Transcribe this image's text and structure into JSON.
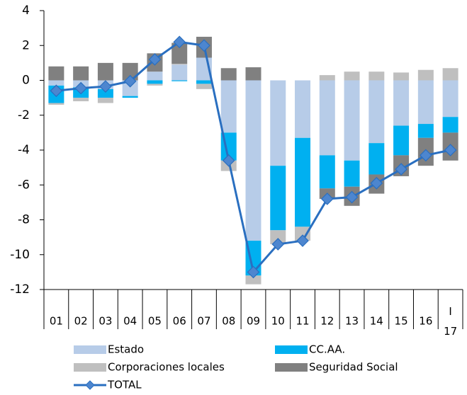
{
  "chart_data": {
    "type": "stacked_bar_line",
    "categories": [
      "01",
      "02",
      "03",
      "04",
      "05",
      "06",
      "07",
      "08",
      "09",
      "10",
      "11",
      "12",
      "13",
      "14",
      "15",
      "16",
      "I\n17"
    ],
    "series": [
      {
        "name": "Estado",
        "color": "#b7cce8",
        "values": [
          -0.3,
          -0.4,
          -0.5,
          -0.9,
          0.5,
          0.9,
          1.3,
          -3.0,
          -9.2,
          -4.9,
          -3.3,
          -4.3,
          -4.6,
          -3.6,
          -2.6,
          -2.5,
          -2.1
        ]
      },
      {
        "name": "CC.AA.",
        "color": "#00b0f0",
        "values": [
          -1.0,
          -0.6,
          -0.5,
          -0.1,
          -0.2,
          -0.05,
          -0.2,
          -1.6,
          -2.0,
          -3.7,
          -5.1,
          -1.9,
          -1.5,
          -1.8,
          -1.7,
          -0.8,
          -0.9
        ]
      },
      {
        "name": "Corporaciones locales",
        "color": "#bfbfbf",
        "values": [
          -0.1,
          -0.2,
          -0.3,
          0,
          -0.1,
          0.05,
          -0.3,
          -0.6,
          -0.5,
          -0.8,
          -0.8,
          0.3,
          0.5,
          0.5,
          0.45,
          0.6,
          0.7
        ]
      },
      {
        "name": "Seguridad Social",
        "color": "#808080",
        "values": [
          0.8,
          0.8,
          1.0,
          1.0,
          1.05,
          1.2,
          1.2,
          0.7,
          0.75,
          0,
          0,
          -0.6,
          -1.1,
          -1.1,
          -1.2,
          -1.6,
          -1.6
        ]
      },
      {
        "name": "TOTAL",
        "type": "line",
        "color": "#2a6fc0",
        "marker_color": "#4d86cf",
        "values": [
          -0.6,
          -0.45,
          -0.35,
          -0.05,
          1.2,
          2.2,
          2.0,
          -4.6,
          -11.0,
          -9.4,
          -9.2,
          -6.8,
          -6.7,
          -5.9,
          -5.1,
          -4.3,
          -4.0
        ]
      }
    ],
    "ylim": [
      -12,
      4
    ],
    "yticks": [
      -12,
      -10,
      -8,
      -6,
      -4,
      -2,
      0,
      2,
      4
    ],
    "grid": false,
    "legend": "bottom"
  }
}
